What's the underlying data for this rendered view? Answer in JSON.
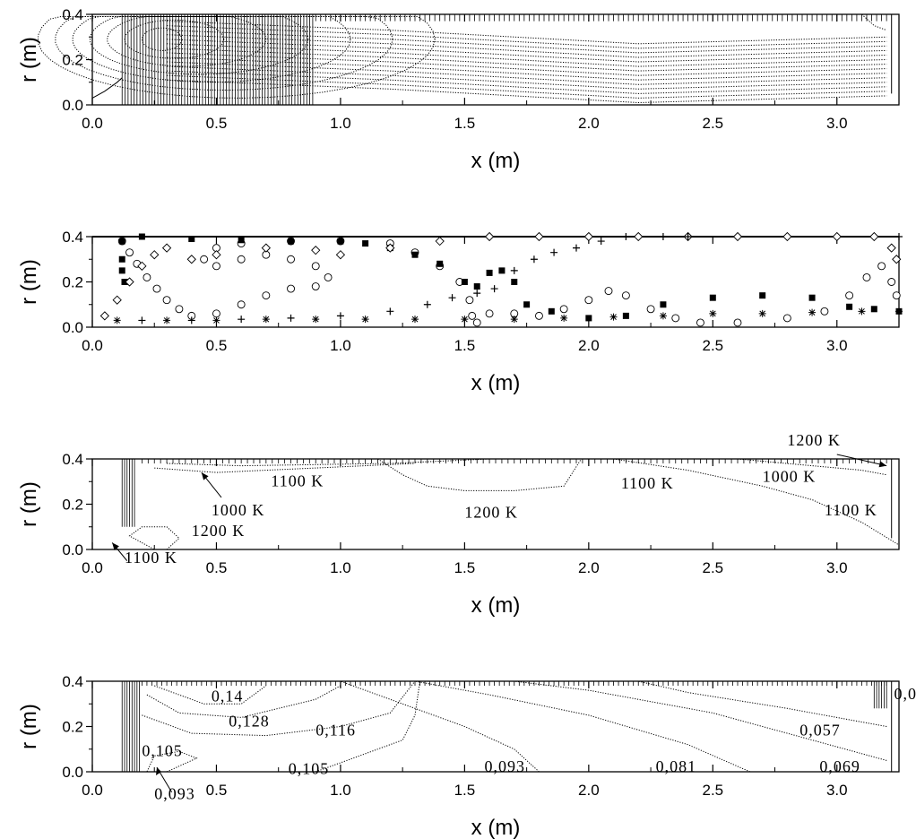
{
  "chart_data": [
    {
      "type": "contour",
      "xlabel": "x (m)",
      "ylabel": "r (m)",
      "xlim": [
        0.0,
        3.25
      ],
      "ylim": [
        0.0,
        0.4
      ],
      "xticks": [
        "0.0",
        "0.5",
        "1.0",
        "1.5",
        "2.0",
        "2.5",
        "3.0"
      ],
      "yticks": [
        "0.0",
        "0.2",
        "0.4"
      ],
      "labels": []
    },
    {
      "type": "scatter",
      "xlabel": "x (m)",
      "ylabel": "r (m)",
      "xlim": [
        0.0,
        3.25
      ],
      "ylim": [
        0.0,
        0.4
      ],
      "xticks": [
        "0.0",
        "0.5",
        "1.0",
        "1.5",
        "2.0",
        "2.5",
        "3.0"
      ],
      "yticks": [
        "0.0",
        "0.2",
        "0.4"
      ],
      "series": [
        {
          "marker": "circle",
          "points": [
            [
              0.12,
              0.38
            ],
            [
              0.15,
              0.33
            ],
            [
              0.18,
              0.28
            ],
            [
              0.22,
              0.22
            ],
            [
              0.26,
              0.17
            ],
            [
              0.3,
              0.12
            ],
            [
              0.35,
              0.08
            ],
            [
              0.4,
              0.05
            ],
            [
              0.5,
              0.06
            ],
            [
              0.6,
              0.1
            ],
            [
              0.7,
              0.14
            ],
            [
              0.8,
              0.17
            ],
            [
              0.9,
              0.18
            ],
            [
              0.95,
              0.22
            ],
            [
              0.9,
              0.27
            ],
            [
              0.8,
              0.3
            ],
            [
              0.7,
              0.32
            ],
            [
              0.6,
              0.3
            ],
            [
              0.5,
              0.27
            ],
            [
              0.45,
              0.3
            ],
            [
              0.5,
              0.35
            ],
            [
              0.6,
              0.37
            ],
            [
              0.8,
              0.38
            ],
            [
              1.0,
              0.38
            ],
            [
              1.2,
              0.37
            ],
            [
              1.3,
              0.33
            ],
            [
              1.4,
              0.27
            ],
            [
              1.48,
              0.2
            ],
            [
              1.52,
              0.12
            ],
            [
              1.53,
              0.05
            ],
            [
              1.55,
              0.02
            ],
            [
              1.6,
              0.06
            ],
            [
              1.7,
              0.06
            ],
            [
              1.8,
              0.05
            ],
            [
              1.9,
              0.08
            ],
            [
              2.0,
              0.12
            ],
            [
              2.08,
              0.16
            ],
            [
              2.15,
              0.14
            ],
            [
              2.25,
              0.08
            ],
            [
              2.35,
              0.04
            ],
            [
              2.45,
              0.02
            ],
            [
              2.6,
              0.02
            ],
            [
              2.8,
              0.04
            ],
            [
              2.95,
              0.07
            ],
            [
              3.05,
              0.14
            ],
            [
              3.12,
              0.22
            ],
            [
              3.18,
              0.27
            ],
            [
              3.22,
              0.2
            ],
            [
              3.24,
              0.14
            ]
          ]
        },
        {
          "marker": "filled-square",
          "points": [
            [
              0.12,
              0.38
            ],
            [
              0.12,
              0.3
            ],
            [
              0.12,
              0.25
            ],
            [
              0.13,
              0.2
            ],
            [
              0.2,
              0.4
            ],
            [
              0.4,
              0.39
            ],
            [
              0.6,
              0.385
            ],
            [
              0.8,
              0.38
            ],
            [
              1.0,
              0.38
            ],
            [
              1.1,
              0.37
            ],
            [
              1.2,
              0.35
            ],
            [
              1.3,
              0.32
            ],
            [
              1.4,
              0.28
            ],
            [
              1.5,
              0.2
            ],
            [
              1.55,
              0.18
            ],
            [
              1.6,
              0.24
            ],
            [
              1.65,
              0.25
            ],
            [
              1.7,
              0.2
            ],
            [
              1.75,
              0.1
            ],
            [
              1.85,
              0.07
            ],
            [
              2.0,
              0.04
            ],
            [
              2.15,
              0.05
            ],
            [
              2.3,
              0.1
            ],
            [
              2.5,
              0.13
            ],
            [
              2.7,
              0.14
            ],
            [
              2.9,
              0.13
            ],
            [
              3.05,
              0.09
            ],
            [
              3.15,
              0.08
            ],
            [
              3.25,
              0.07
            ]
          ]
        },
        {
          "marker": "diamond",
          "points": [
            [
              0.05,
              0.05
            ],
            [
              0.1,
              0.12
            ],
            [
              0.15,
              0.2
            ],
            [
              0.2,
              0.27
            ],
            [
              0.25,
              0.32
            ],
            [
              0.3,
              0.35
            ],
            [
              0.4,
              0.3
            ],
            [
              0.5,
              0.32
            ],
            [
              0.7,
              0.35
            ],
            [
              0.9,
              0.34
            ],
            [
              1.0,
              0.32
            ],
            [
              1.2,
              0.35
            ],
            [
              1.4,
              0.38
            ],
            [
              1.6,
              0.4
            ],
            [
              1.8,
              0.4
            ],
            [
              2.0,
              0.4
            ],
            [
              2.2,
              0.4
            ],
            [
              2.4,
              0.4
            ],
            [
              2.6,
              0.4
            ],
            [
              2.8,
              0.4
            ],
            [
              3.0,
              0.4
            ],
            [
              3.15,
              0.4
            ],
            [
              3.22,
              0.35
            ],
            [
              3.24,
              0.3
            ]
          ]
        },
        {
          "marker": "plus",
          "points": [
            [
              0.2,
              0.03
            ],
            [
              0.4,
              0.03
            ],
            [
              0.6,
              0.035
            ],
            [
              0.8,
              0.04
            ],
            [
              1.0,
              0.05
            ],
            [
              1.2,
              0.07
            ],
            [
              1.35,
              0.1
            ],
            [
              1.45,
              0.13
            ],
            [
              1.55,
              0.15
            ],
            [
              1.62,
              0.17
            ],
            [
              1.7,
              0.25
            ],
            [
              1.78,
              0.3
            ],
            [
              1.86,
              0.33
            ],
            [
              1.95,
              0.35
            ],
            [
              2.05,
              0.38
            ],
            [
              2.15,
              0.4
            ],
            [
              2.3,
              0.4
            ],
            [
              2.4,
              0.4
            ],
            [
              3.25,
              0.4
            ]
          ]
        },
        {
          "marker": "asterisk",
          "points": [
            [
              0.1,
              0.03
            ],
            [
              0.3,
              0.03
            ],
            [
              0.5,
              0.03
            ],
            [
              0.7,
              0.035
            ],
            [
              0.9,
              0.035
            ],
            [
              1.1,
              0.035
            ],
            [
              1.3,
              0.035
            ],
            [
              1.5,
              0.035
            ],
            [
              1.7,
              0.035
            ],
            [
              1.9,
              0.04
            ],
            [
              2.1,
              0.045
            ],
            [
              2.3,
              0.05
            ],
            [
              2.5,
              0.06
            ],
            [
              2.7,
              0.06
            ],
            [
              2.9,
              0.065
            ],
            [
              3.1,
              0.07
            ],
            [
              3.25,
              0.07
            ]
          ]
        }
      ]
    },
    {
      "type": "contour",
      "xlabel": "x (m)",
      "ylabel": "r (m)",
      "xlim": [
        0.0,
        3.25
      ],
      "ylim": [
        0.0,
        0.4
      ],
      "xticks": [
        "0.0",
        "0.5",
        "1.0",
        "1.5",
        "2.0",
        "2.5",
        "3.0"
      ],
      "yticks": [
        "0.0",
        "0.2",
        "0.4"
      ],
      "labels": [
        {
          "text": "1100 K",
          "x": 0.72,
          "y": 0.28
        },
        {
          "text": "1000 K",
          "x": 0.48,
          "y": 0.15
        },
        {
          "text": "1200 K",
          "x": 0.4,
          "y": 0.06
        },
        {
          "text": "1100 K",
          "x": 0.13,
          "y": -0.06
        },
        {
          "text": "1200 K",
          "x": 1.5,
          "y": 0.14
        },
        {
          "text": "1100 K",
          "x": 2.13,
          "y": 0.27
        },
        {
          "text": "1000 K",
          "x": 2.7,
          "y": 0.3
        },
        {
          "text": "1200 K",
          "x": 2.8,
          "y": 0.46
        },
        {
          "text": "1100 K",
          "x": 2.95,
          "y": 0.15
        }
      ]
    },
    {
      "type": "contour",
      "xlabel": "x (m)",
      "ylabel": "r (m)",
      "xlim": [
        0.0,
        3.25
      ],
      "ylim": [
        0.0,
        0.4
      ],
      "xticks": [
        "0.0",
        "0.5",
        "1.0",
        "1.5",
        "2.0",
        "2.5",
        "3.0"
      ],
      "yticks": [
        "0.0",
        "0.2",
        "0.4"
      ],
      "labels": [
        {
          "text": "0,14",
          "x": 0.48,
          "y": 0.31
        },
        {
          "text": "0,128",
          "x": 0.55,
          "y": 0.2
        },
        {
          "text": "0,116",
          "x": 0.9,
          "y": 0.16
        },
        {
          "text": "0,105",
          "x": 0.2,
          "y": 0.07
        },
        {
          "text": "0,105",
          "x": 0.79,
          "y": -0.01
        },
        {
          "text": "0,093",
          "x": 1.58,
          "y": 0.0
        },
        {
          "text": "0,081",
          "x": 2.27,
          "y": 0.0
        },
        {
          "text": "0,069",
          "x": 2.93,
          "y": 0.0
        },
        {
          "text": "0,057",
          "x": 2.85,
          "y": 0.16
        },
        {
          "text": "0,093",
          "x": 0.25,
          "y": -0.12
        },
        {
          "text": "0,0",
          "x": 3.23,
          "y": 0.32
        }
      ]
    }
  ]
}
